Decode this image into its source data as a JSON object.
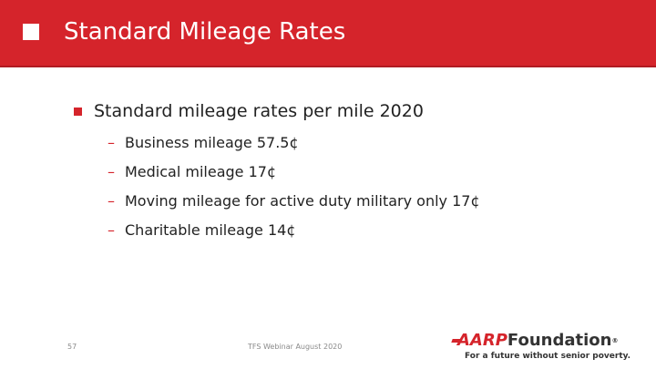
{
  "slide": {
    "title": "Standard Mileage Rates",
    "bullet": "Standard mileage rates per mile 2020",
    "sub_items": [
      "Business mileage 57.5¢",
      "Medical mileage 17¢",
      "Moving mileage for active duty military only 17¢",
      "Charitable mileage 14¢"
    ],
    "dash_glyph": "–"
  },
  "footer": {
    "page_number": "57",
    "center_text": "TFS Webinar August 2020"
  },
  "logo": {
    "brand": "AARP",
    "name": "Foundation",
    "registered": "®",
    "tagline": "For a future without senior poverty."
  },
  "colors": {
    "accent": "#d5242b"
  }
}
